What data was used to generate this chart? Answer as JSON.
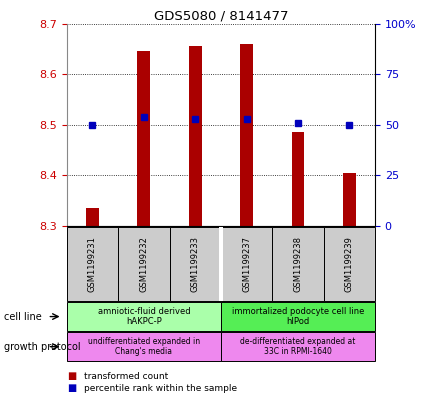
{
  "title": "GDS5080 / 8141477",
  "samples": [
    "GSM1199231",
    "GSM1199232",
    "GSM1199233",
    "GSM1199237",
    "GSM1199238",
    "GSM1199239"
  ],
  "red_values": [
    8.335,
    8.645,
    8.655,
    8.66,
    8.485,
    8.405
  ],
  "blue_values": [
    50,
    54,
    53,
    53,
    51,
    50
  ],
  "ylim_left": [
    8.3,
    8.7
  ],
  "ylim_right": [
    0,
    100
  ],
  "yticks_left": [
    8.3,
    8.4,
    8.5,
    8.6,
    8.7
  ],
  "yticks_right": [
    0,
    25,
    50,
    75,
    100
  ],
  "cell_line_label_1": "amniotic-fluid derived\nhAKPC-P",
  "cell_line_label_2": "immortalized podocyte cell line\nhIPod",
  "cell_line_color_1": "#aaffaa",
  "cell_line_color_2": "#55ee55",
  "growth_label_1": "undifferentiated expanded in\nChang's media",
  "growth_label_2": "de-differentiated expanded at\n33C in RPMI-1640",
  "growth_color": "#ee88ee",
  "sample_bg_color": "#cccccc",
  "bar_color": "#aa0000",
  "dot_color": "#0000bb",
  "tick_color_left": "#cc0000",
  "tick_color_right": "#0000cc",
  "right_tick_labels": [
    "0",
    "25",
    "50",
    "75",
    "100%"
  ],
  "bar_width": 0.25
}
